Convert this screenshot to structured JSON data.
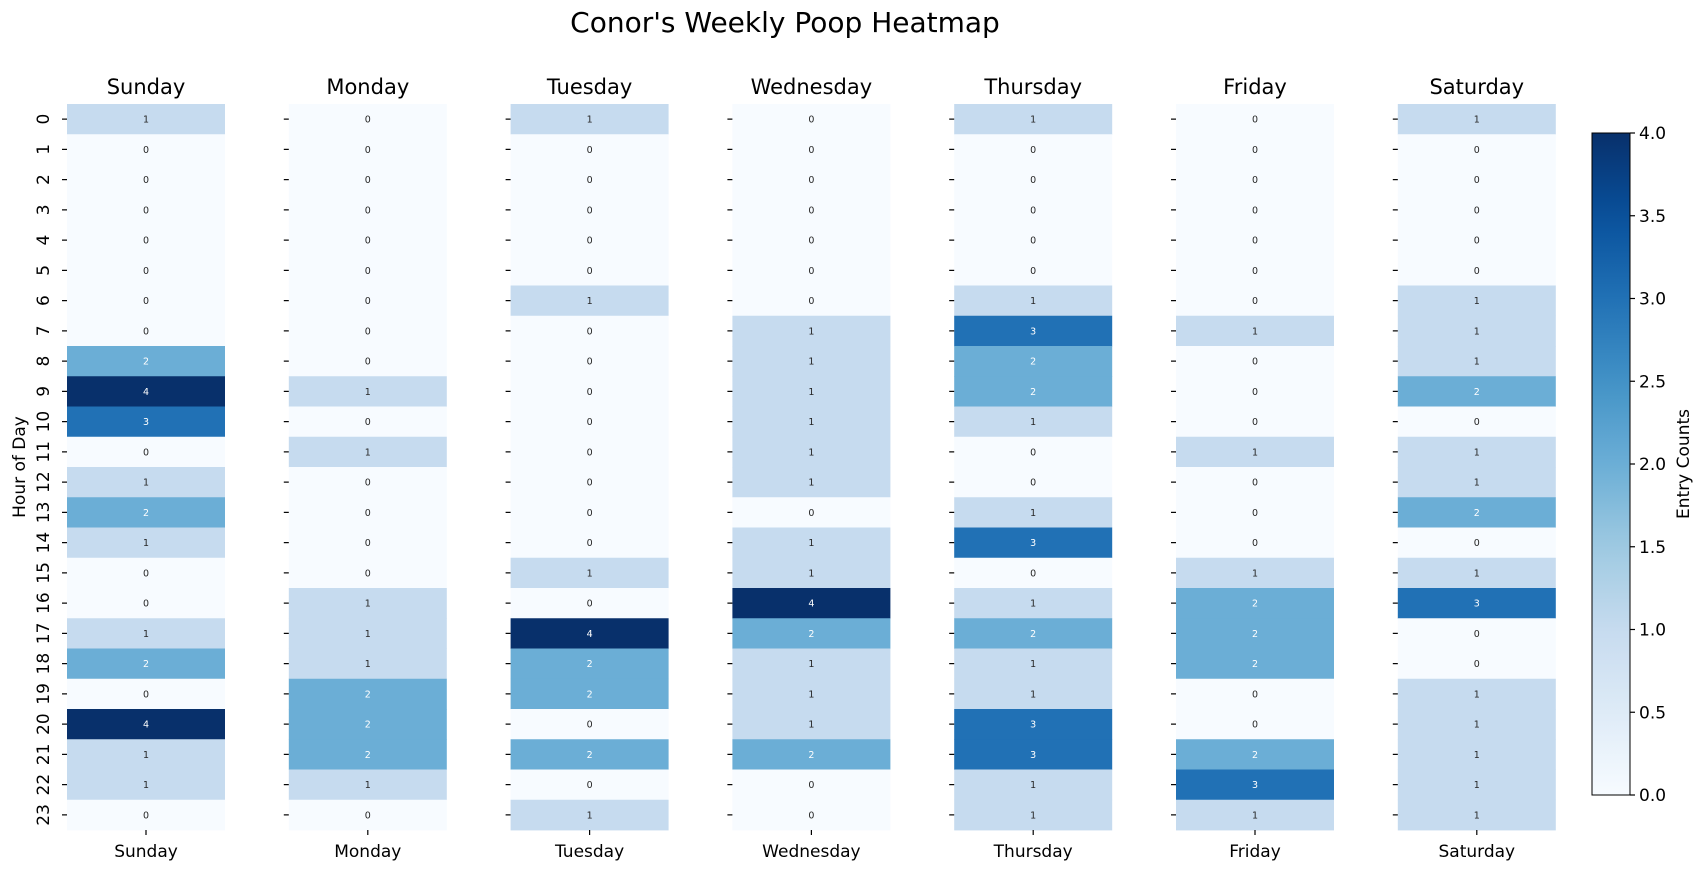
{
  "chart_data": {
    "type": "heatmap",
    "title": "Conor's Weekly Poop Heatmap",
    "ylabel": "Hour of Day",
    "colorbar_label": "Entry Counts",
    "colormap": "Blues",
    "value_range": [
      0,
      4
    ],
    "colorbar_ticks": [
      "0.0",
      "0.5",
      "1.0",
      "1.5",
      "2.0",
      "2.5",
      "3.0",
      "3.5",
      "4.0"
    ],
    "hours": [
      "0",
      "1",
      "2",
      "3",
      "4",
      "5",
      "6",
      "7",
      "8",
      "9",
      "10",
      "11",
      "12",
      "13",
      "14",
      "15",
      "16",
      "17",
      "18",
      "19",
      "20",
      "21",
      "22",
      "23"
    ],
    "days": [
      {
        "name": "Sunday",
        "values": [
          1,
          0,
          0,
          0,
          0,
          0,
          0,
          0,
          2,
          4,
          3,
          0,
          1,
          2,
          1,
          0,
          0,
          1,
          2,
          0,
          4,
          1,
          1,
          0
        ]
      },
      {
        "name": "Monday",
        "values": [
          0,
          0,
          0,
          0,
          0,
          0,
          0,
          0,
          0,
          1,
          0,
          1,
          0,
          0,
          0,
          0,
          1,
          1,
          1,
          2,
          2,
          2,
          1,
          0
        ]
      },
      {
        "name": "Tuesday",
        "values": [
          1,
          0,
          0,
          0,
          0,
          0,
          1,
          0,
          0,
          0,
          0,
          0,
          0,
          0,
          0,
          1,
          0,
          4,
          2,
          2,
          0,
          2,
          0,
          1
        ]
      },
      {
        "name": "Wednesday",
        "values": [
          0,
          0,
          0,
          0,
          0,
          0,
          0,
          1,
          1,
          1,
          1,
          1,
          1,
          0,
          1,
          1,
          4,
          2,
          1,
          1,
          1,
          2,
          0,
          0
        ]
      },
      {
        "name": "Thursday",
        "values": [
          1,
          0,
          0,
          0,
          0,
          0,
          1,
          3,
          2,
          2,
          1,
          0,
          0,
          1,
          3,
          0,
          1,
          2,
          1,
          1,
          3,
          3,
          1,
          1
        ]
      },
      {
        "name": "Friday",
        "values": [
          0,
          0,
          0,
          0,
          0,
          0,
          0,
          1,
          0,
          0,
          0,
          1,
          0,
          0,
          0,
          1,
          2,
          2,
          2,
          0,
          0,
          2,
          3,
          1
        ]
      },
      {
        "name": "Saturday",
        "values": [
          1,
          0,
          0,
          0,
          0,
          0,
          1,
          1,
          1,
          2,
          0,
          1,
          1,
          2,
          0,
          1,
          3,
          0,
          0,
          1,
          1,
          1,
          1,
          1
        ]
      }
    ]
  }
}
